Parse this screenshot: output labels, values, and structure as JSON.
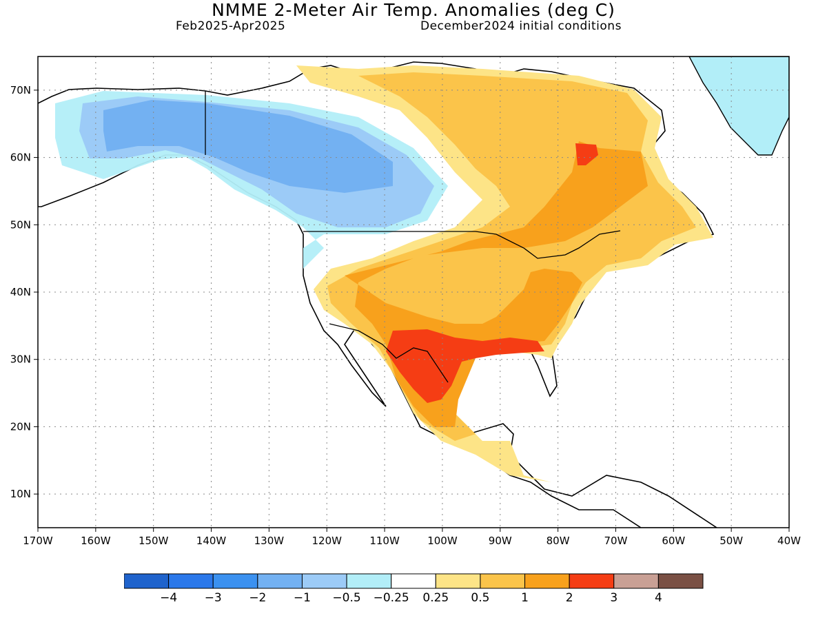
{
  "header": {
    "title": "NMME 2-Meter Air Temp. Anomalies (deg C)",
    "period": "Feb2025-Apr2025",
    "init": "December2024 initial conditions"
  },
  "axes": {
    "lon_labels": [
      "170W",
      "160W",
      "150W",
      "140W",
      "130W",
      "120W",
      "110W",
      "100W",
      "90W",
      "80W",
      "70W",
      "60W",
      "50W",
      "40W"
    ],
    "lat_labels": [
      "10N",
      "20N",
      "30N",
      "40N",
      "50N",
      "60N",
      "70N"
    ],
    "lon_range": [
      -170,
      -40
    ],
    "lat_range": [
      5,
      75
    ]
  },
  "colorbar": {
    "colors": [
      "#1f63cc",
      "#2b78ea",
      "#3b91f0",
      "#73b1f2",
      "#9ccbf7",
      "#b2eef8",
      "#ffffff",
      "#fde487",
      "#fbc44a",
      "#f8a11c",
      "#f53d14",
      "#c9a095",
      "#7a5044"
    ],
    "labels": [
      "−4",
      "−3",
      "−2",
      "−1",
      "−0.5",
      "−0.25",
      "0.25",
      "0.5",
      "1",
      "2",
      "3",
      "4"
    ]
  }
}
